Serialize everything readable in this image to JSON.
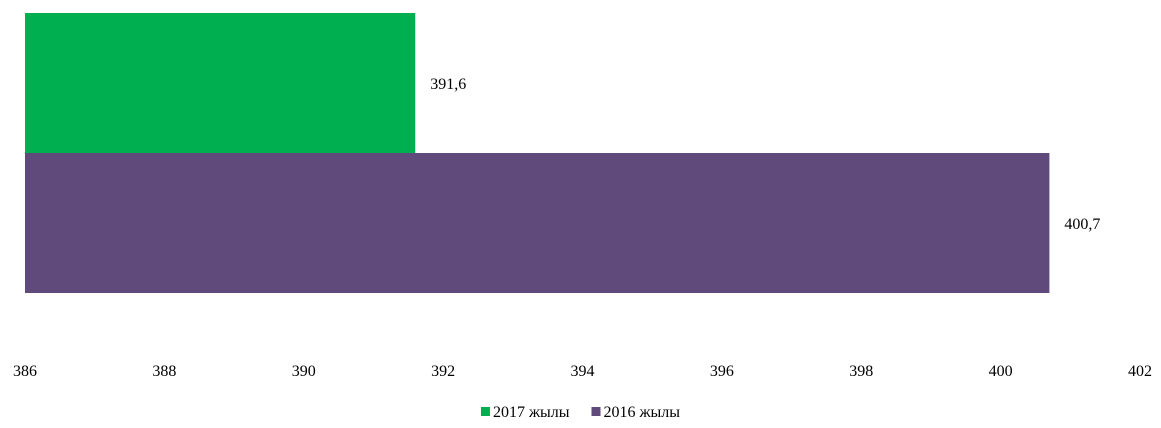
{
  "chart_data": {
    "type": "bar",
    "orientation": "horizontal",
    "title": "",
    "xlabel": "",
    "ylabel": "",
    "xlim": [
      386,
      402
    ],
    "ticks": [
      386,
      388,
      390,
      392,
      394,
      396,
      398,
      400,
      402
    ],
    "tick_labels": [
      "386",
      "388",
      "390",
      "392",
      "394",
      "396",
      "398",
      "400",
      "402"
    ],
    "grid": false,
    "legend_position": "bottom",
    "series": [
      {
        "name": "2017 жылы",
        "value": 391.6,
        "value_label": "391,6",
        "color": "#00B050"
      },
      {
        "name": "2016 жылы",
        "value": 400.7,
        "value_label": "400,7",
        "color": "#604A7B"
      }
    ]
  }
}
